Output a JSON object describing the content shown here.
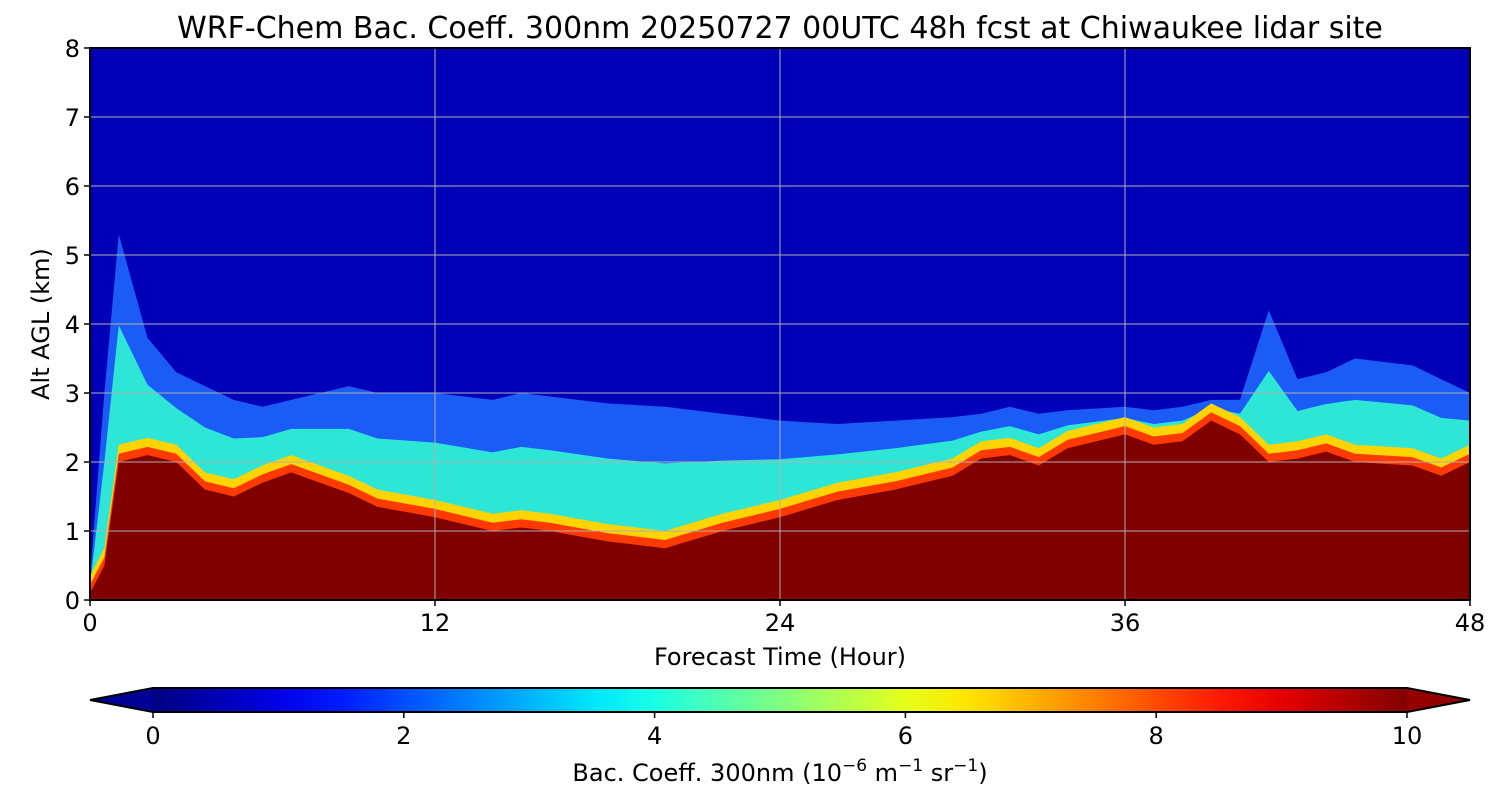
{
  "chart_data": {
    "type": "heatmap",
    "title": "WRF-Chem Bac. Coeff. 300nm  20250727 00UTC 48h fcst at Chiwaukee lidar site",
    "xlabel": "Forecast Time (Hour)",
    "ylabel": "Alt AGL (km)",
    "xlim": [
      0,
      48
    ],
    "ylim": [
      0,
      8
    ],
    "x_ticks": [
      "0",
      "12",
      "24",
      "36",
      "48"
    ],
    "x_tick_values": [
      0,
      12,
      24,
      36,
      48
    ],
    "y_ticks": [
      "0",
      "1",
      "2",
      "3",
      "4",
      "5",
      "6",
      "7",
      "8"
    ],
    "y_tick_values": [
      0,
      1,
      2,
      3,
      4,
      5,
      6,
      7,
      8
    ],
    "grid": true,
    "colormap": "jet",
    "colorbar": {
      "label_main": "Bac. Coeff. 300nm  (10",
      "label_exp1": "−6",
      "label_mid": " m",
      "label_exp2": "−1",
      "label_mid2": " sr",
      "label_exp3": "−1",
      "label_end": ")",
      "ticks": [
        "0",
        "2",
        "4",
        "6",
        "8",
        "10"
      ],
      "tick_values": [
        0,
        2,
        4,
        6,
        8,
        10
      ],
      "range": [
        0,
        10
      ],
      "extend": "both",
      "orientation": "horizontal"
    },
    "time_hours": [
      0,
      0.5,
      1,
      2,
      3,
      4,
      5,
      6,
      7,
      8,
      9,
      10,
      12,
      14,
      15,
      16,
      18,
      20,
      22,
      24,
      26,
      28,
      30,
      31,
      32,
      33,
      34,
      36,
      37,
      38,
      39,
      40,
      41,
      42,
      43,
      44,
      46,
      47,
      48
    ],
    "saturated_layer_top_km": [
      0.1,
      0.5,
      2.0,
      2.1,
      2.0,
      1.6,
      1.5,
      1.7,
      1.85,
      1.7,
      1.55,
      1.35,
      1.2,
      1.0,
      1.05,
      1.0,
      0.85,
      0.75,
      1.0,
      1.2,
      1.45,
      1.6,
      1.8,
      2.05,
      2.1,
      1.95,
      2.2,
      2.4,
      2.25,
      2.3,
      2.6,
      2.4,
      2.0,
      2.05,
      2.15,
      2.0,
      1.95,
      1.8,
      2.0
    ],
    "aerosol_layer_top_km": [
      0.3,
      3.0,
      5.3,
      3.8,
      3.3,
      3.1,
      2.9,
      2.8,
      2.9,
      3.0,
      3.1,
      3.0,
      3.0,
      2.9,
      3.0,
      2.95,
      2.85,
      2.8,
      2.7,
      2.6,
      2.55,
      2.6,
      2.65,
      2.7,
      2.8,
      2.7,
      2.75,
      2.8,
      2.75,
      2.8,
      2.9,
      2.9,
      4.2,
      3.2,
      3.3,
      3.5,
      3.4,
      3.2,
      3.0
    ]
  }
}
